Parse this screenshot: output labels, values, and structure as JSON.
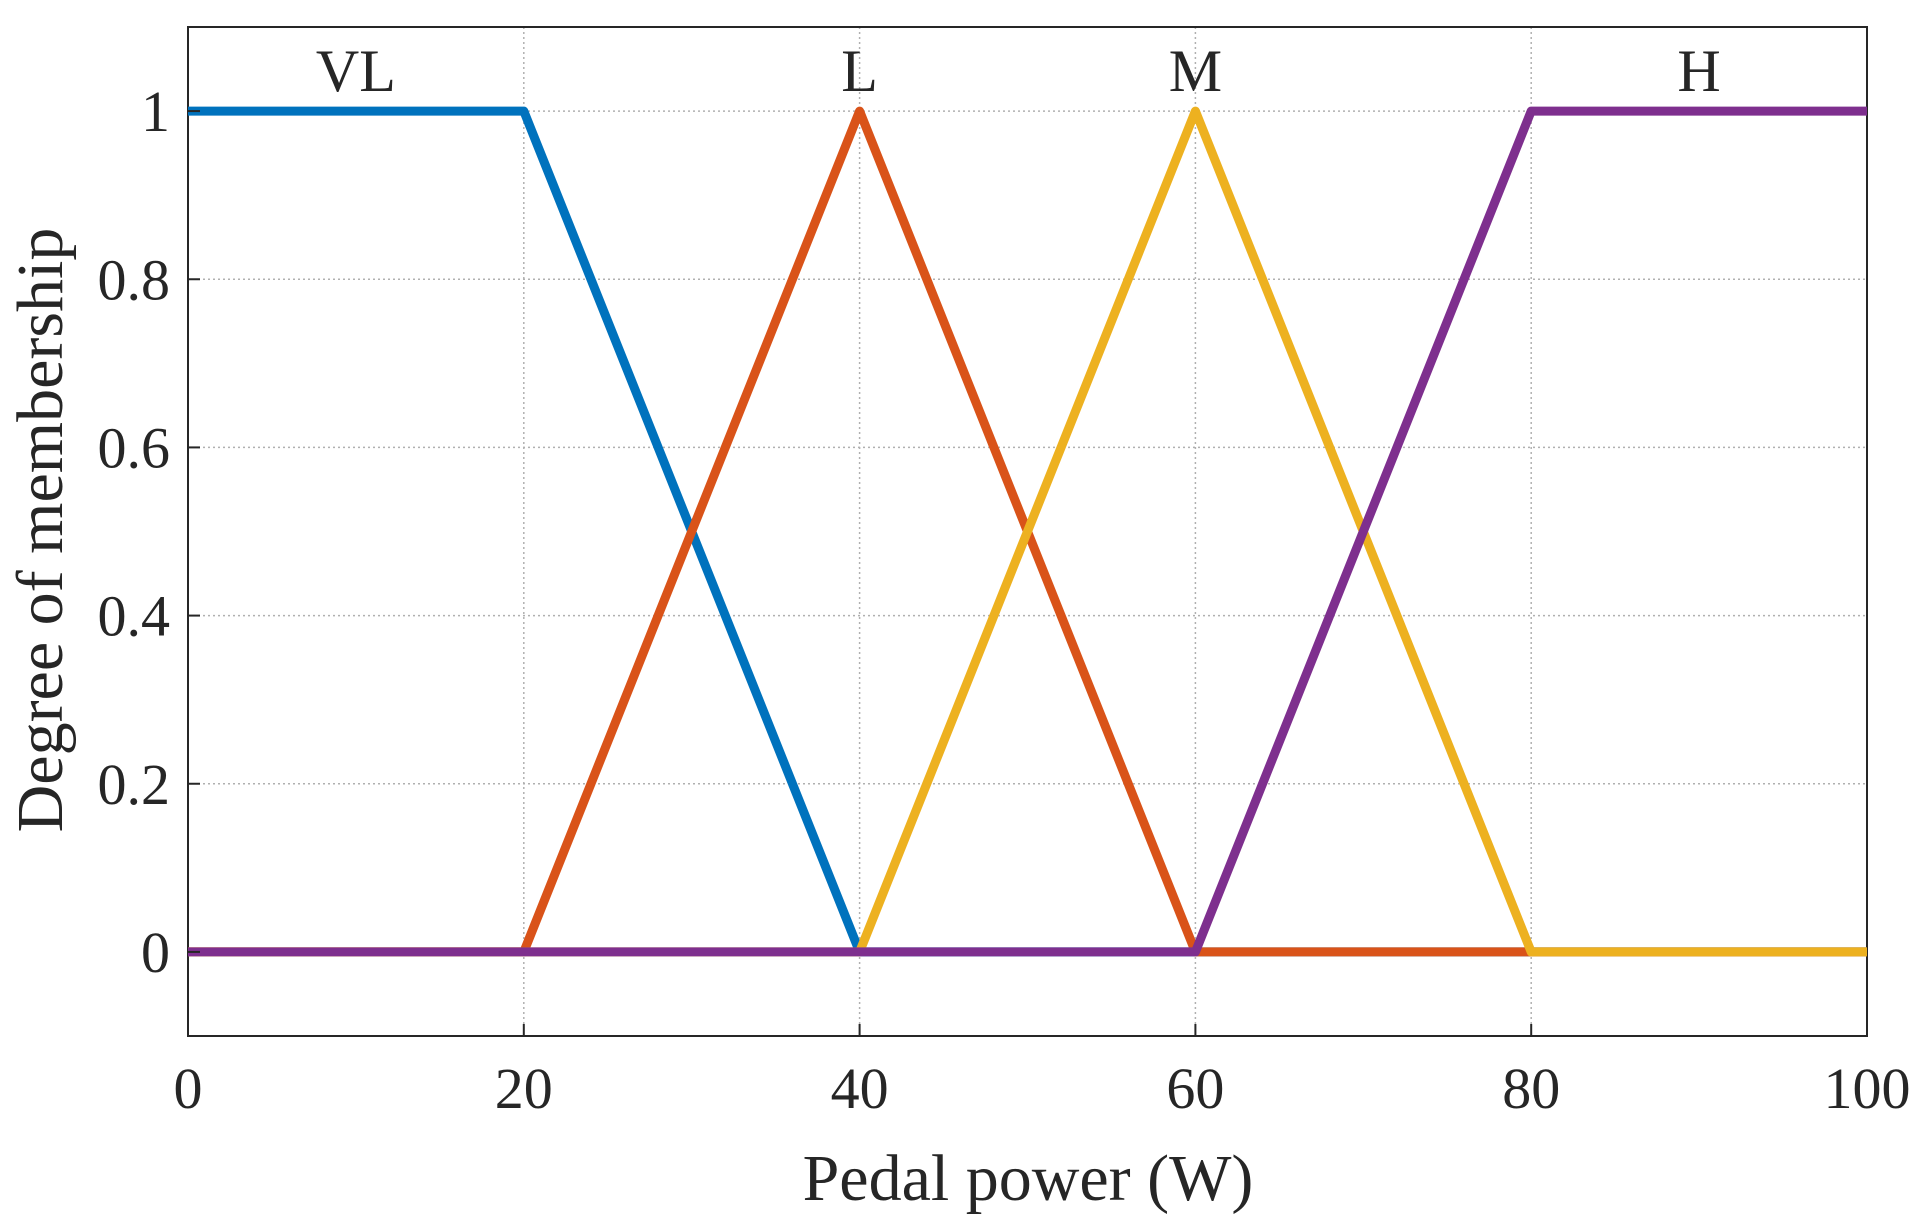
{
  "chart_data": {
    "type": "line",
    "title": "",
    "xlabel": "Pedal power (W)",
    "ylabel": "Degree of membership",
    "xlim": [
      0,
      100
    ],
    "ylim": [
      -0.1,
      1.1
    ],
    "xticks": [
      0,
      20,
      40,
      60,
      80,
      100
    ],
    "xtick_labels": [
      "0",
      "20",
      "40",
      "60",
      "80",
      "100"
    ],
    "yticks": [
      0,
      0.2,
      0.4,
      0.6,
      0.8,
      1
    ],
    "ytick_labels": [
      "0",
      "0.2",
      "0.4",
      "0.6",
      "0.8",
      "1"
    ],
    "grid": true,
    "series": [
      {
        "name": "VL",
        "color": "#0072bd",
        "x": [
          0,
          20,
          40,
          100
        ],
        "y": [
          1,
          1,
          0,
          0
        ]
      },
      {
        "name": "L",
        "color": "#d95319",
        "x": [
          0,
          20,
          40,
          60,
          100
        ],
        "y": [
          0,
          0,
          1,
          0,
          0
        ]
      },
      {
        "name": "M",
        "color": "#edb120",
        "x": [
          0,
          40,
          60,
          80,
          100
        ],
        "y": [
          0,
          0,
          1,
          0,
          0
        ]
      },
      {
        "name": "H",
        "color": "#7e2f8e",
        "x": [
          0,
          60,
          80,
          100
        ],
        "y": [
          0,
          0,
          1,
          1
        ]
      }
    ],
    "annotations": [
      {
        "text": "VL",
        "x": 10,
        "y": 1.05
      },
      {
        "text": "L",
        "x": 40,
        "y": 1.05
      },
      {
        "text": "M",
        "x": 60,
        "y": 1.05
      },
      {
        "text": "H",
        "x": 90,
        "y": 1.05
      }
    ]
  }
}
